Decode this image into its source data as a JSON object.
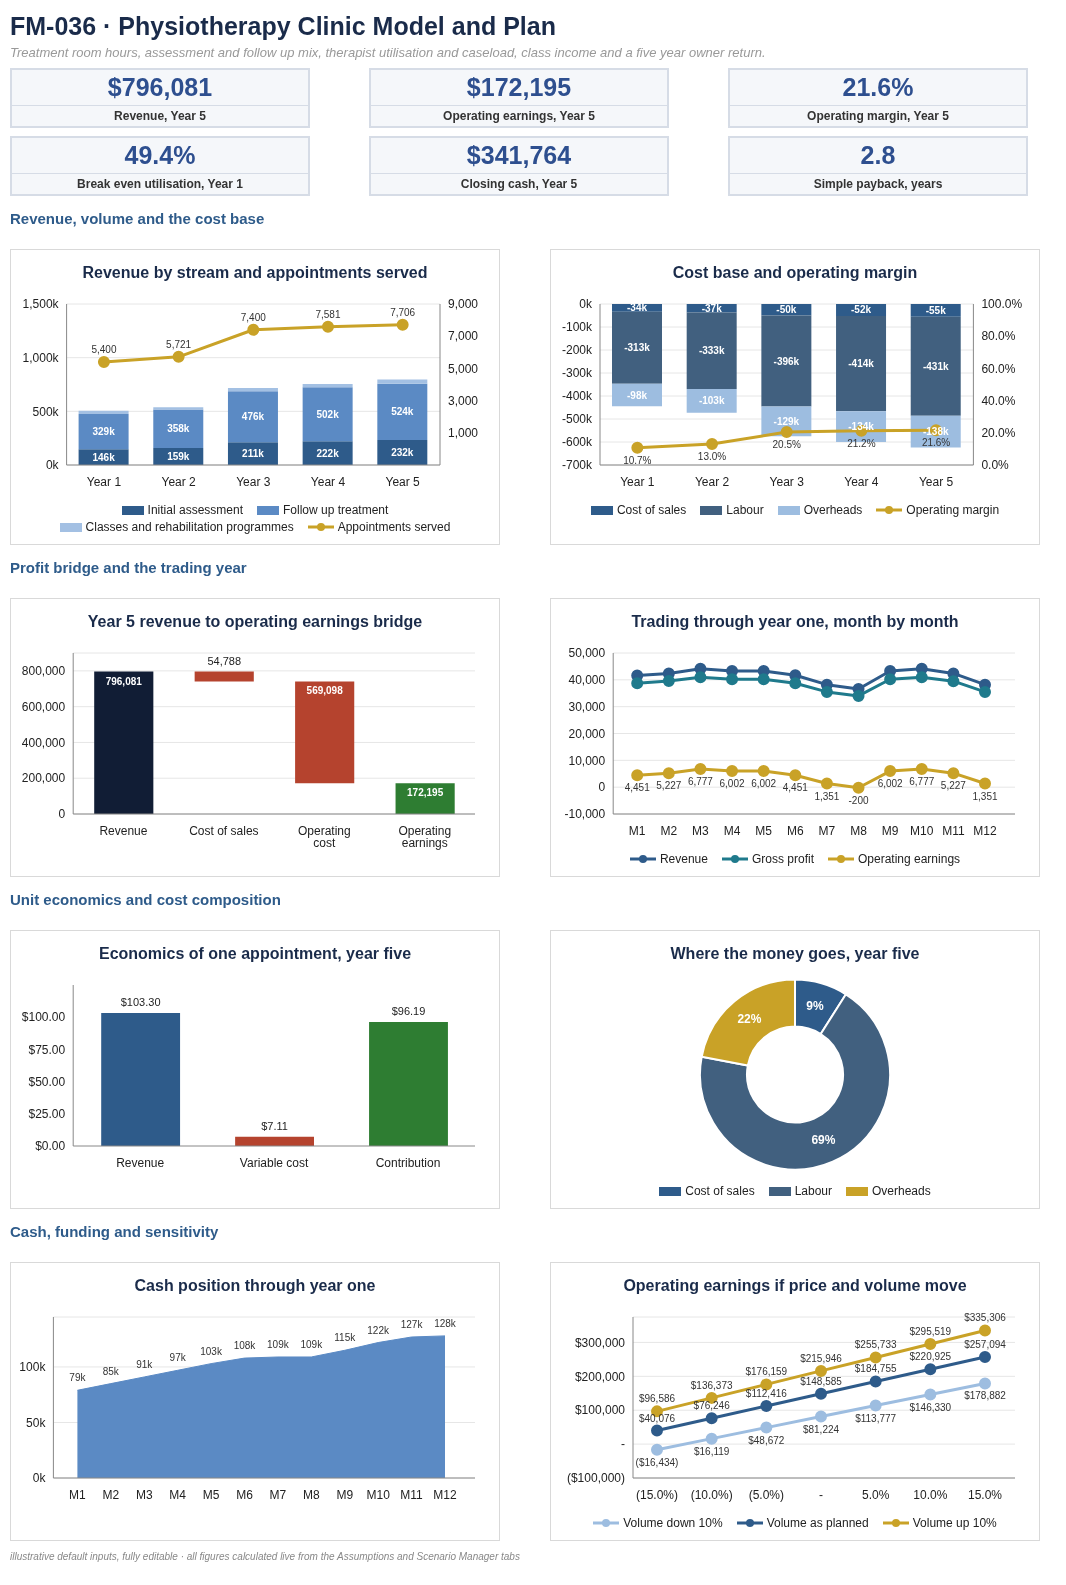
{
  "chart_data": [
    {
      "type": "other",
      "title": "FM-036 · Physiotherapy Clinic Model and Plan",
      "subtitle": "Treatment room hours, assessment and follow up mix, therapist utilisation and caseload, class income and a five year owner return.",
      "annotations": [
        "$796,081",
        "Revenue, Year 5",
        "$172,195",
        "Operating earnings, Year 5",
        "21.6%",
        "Operating margin, Year 5",
        "49.4%",
        "Break even utilisation, Year 1",
        "$341,764",
        "Closing cash, Year 5",
        "2.8",
        "Simple payback, years"
      ]
    },
    {
      "type": "other",
      "title": "Revenue, volume and the cost base"
    },
    {
      "type": "bar",
      "title": "Revenue by stream and appointments served",
      "categories": [
        "Year 1",
        "Year 2",
        "Year 3",
        "Year 4",
        "Year 5"
      ],
      "stacked": true,
      "legend": "bottom",
      "grid": "y",
      "marker": "circle",
      "series": [
        {
          "name": "Initial assessment",
          "color": "#2e5b8a",
          "values": [
            146000,
            159000,
            211000,
            222000,
            232000
          ],
          "value_labels": [
            "146k",
            "159k",
            "211k",
            "222k",
            "232k"
          ]
        },
        {
          "name": "Follow up treatment",
          "color": "#5b8ac4",
          "values": [
            329000,
            358000,
            476000,
            502000,
            524000
          ],
          "value_labels": [
            "329k",
            "358k",
            "476k",
            "502k",
            "524k"
          ]
        },
        {
          "name": "Classes and rehabilitation programmes",
          "color": "#a3c0e3",
          "values": [
            30000,
            20000,
            30000,
            30000,
            40000
          ]
        },
        {
          "name": "Appointments served",
          "type": "line",
          "axis": "y2",
          "color": "#c9a227",
          "values": [
            5400,
            5721,
            7400,
            7581,
            7706
          ],
          "value_labels": [
            "5,400",
            "5,721",
            "7,400",
            "7,581",
            "7,706"
          ]
        }
      ],
      "ylim": [
        0,
        1500000
      ],
      "yticks": [
        {
          "value": 0,
          "label": "0k"
        },
        {
          "value": 500000,
          "label": "500k"
        },
        {
          "value": 1000000,
          "label": "1,000k"
        },
        {
          "value": 1500000,
          "label": "1,500k"
        }
      ],
      "y2lim": [
        -1000,
        9000
      ],
      "y2ticks": [
        {
          "value": 1000,
          "label": "1,000"
        },
        {
          "value": 3000,
          "label": "3,000"
        },
        {
          "value": 5000,
          "label": "5,000"
        },
        {
          "value": 7000,
          "label": "7,000"
        },
        {
          "value": 9000,
          "label": "9,000"
        }
      ]
    },
    {
      "type": "bar",
      "title": "Cost base and operating margin",
      "categories": [
        "Year 1",
        "Year 2",
        "Year 3",
        "Year 4",
        "Year 5"
      ],
      "stacked": true,
      "legend": "bottom",
      "grid": "y",
      "marker": "circle",
      "series": [
        {
          "name": "Cost of sales",
          "color": "#2e5b8a",
          "values": [
            -34000,
            -37000,
            -50000,
            -52000,
            -55000
          ],
          "value_labels": [
            "-34k",
            "-37k",
            "-50k",
            "-52k",
            "-55k"
          ]
        },
        {
          "name": "Labour",
          "color": "#41607f",
          "values": [
            -313000,
            -333000,
            -396000,
            -414000,
            -431000
          ],
          "value_labels": [
            "-313k",
            "-333k",
            "-396k",
            "-414k",
            "-431k"
          ]
        },
        {
          "name": "Overheads",
          "color": "#9dbde0",
          "values": [
            -98000,
            -103000,
            -129000,
            -134000,
            -138000
          ],
          "value_labels": [
            "-98k",
            "-103k",
            "-129k",
            "-134k",
            "-138k"
          ]
        },
        {
          "name": "Operating margin",
          "type": "line",
          "axis": "y2",
          "color": "#c9a227",
          "values": [
            10.7,
            13.0,
            20.5,
            21.2,
            21.6
          ],
          "value_labels": [
            "10.7%",
            "13.0%",
            "20.5%",
            "21.2%",
            "21.6%"
          ]
        }
      ],
      "ylim": [
        -700000,
        0
      ],
      "yticks": [
        {
          "value": -700000,
          "label": "-700k"
        },
        {
          "value": -600000,
          "label": "-600k"
        },
        {
          "value": -500000,
          "label": "-500k"
        },
        {
          "value": -400000,
          "label": "-400k"
        },
        {
          "value": -300000,
          "label": "-300k"
        },
        {
          "value": -200000,
          "label": "-200k"
        },
        {
          "value": -100000,
          "label": "-100k"
        },
        {
          "value": 0,
          "label": "0k"
        }
      ],
      "y2lim": [
        0,
        100
      ],
      "y2ticks": [
        {
          "value": 0,
          "label": "0.0%"
        },
        {
          "value": 20,
          "label": "20.0%"
        },
        {
          "value": 40,
          "label": "40.0%"
        },
        {
          "value": 60,
          "label": "60.0%"
        },
        {
          "value": 80,
          "label": "80.0%"
        },
        {
          "value": 100,
          "label": "100.0%"
        }
      ]
    },
    {
      "type": "other",
      "title": "Profit bridge and the trading year"
    },
    {
      "type": "bar",
      "title": "Year 5 revenue to operating earnings bridge",
      "categories": [
        "Revenue",
        "Cost of sales",
        "Operating cost",
        "Operating earnings"
      ],
      "grid": "y",
      "values": [
        796081,
        54788,
        569098,
        172195
      ],
      "base": [
        0,
        741293,
        172195,
        0
      ],
      "colors": [
        "#111d35",
        "#b5432e",
        "#b5432e",
        "#2e7d32"
      ],
      "value_labels": [
        "796,081",
        "54,788",
        "569,098",
        "172,195"
      ],
      "ylim": [
        0,
        900000
      ],
      "yticks": [
        {
          "value": 0,
          "label": "0"
        },
        {
          "value": 200000,
          "label": "200,000"
        },
        {
          "value": 400000,
          "label": "400,000"
        },
        {
          "value": 600000,
          "label": "600,000"
        },
        {
          "value": 800000,
          "label": "800,000"
        }
      ]
    },
    {
      "type": "line",
      "title": "Trading through year one, month by month",
      "categories": [
        "M1",
        "M2",
        "M3",
        "M4",
        "M5",
        "M6",
        "M7",
        "M8",
        "M9",
        "M10",
        "M11",
        "M12"
      ],
      "legend": "bottom",
      "grid": "y",
      "marker": "circle",
      "series": [
        {
          "name": "Revenue",
          "color": "#2e5b8a",
          "values": [
            41600,
            42400,
            44100,
            43300,
            43300,
            41700,
            38200,
            36600,
            43300,
            44100,
            42400,
            38200
          ]
        },
        {
          "name": "Gross profit",
          "color": "#1f7a8c",
          "values": [
            38700,
            39600,
            41000,
            40200,
            40200,
            38700,
            35500,
            34000,
            40200,
            41000,
            39500,
            35500
          ]
        },
        {
          "name": "Operating earnings",
          "color": "#c9a227",
          "values": [
            4451,
            5227,
            6777,
            6002,
            6002,
            4451,
            1351,
            -200,
            6002,
            6777,
            5227,
            1351
          ],
          "value_labels": [
            "4,451",
            "5,227",
            "6,777",
            "6,002",
            "6,002",
            "4,451",
            "1,351",
            "-200",
            "6,002",
            "6,777",
            "5,227",
            "1,351"
          ]
        }
      ],
      "ylim": [
        -10000,
        50000
      ],
      "yticks": [
        {
          "value": -10000,
          "label": "-10,000"
        },
        {
          "value": 0,
          "label": "0"
        },
        {
          "value": 10000,
          "label": "10,000"
        },
        {
          "value": 20000,
          "label": "20,000"
        },
        {
          "value": 30000,
          "label": "30,000"
        },
        {
          "value": 40000,
          "label": "40,000"
        },
        {
          "value": 50000,
          "label": "50,000"
        }
      ]
    },
    {
      "type": "other",
      "title": "Unit economics and cost composition"
    },
    {
      "type": "bar",
      "title": "Economics of one appointment, year five",
      "categories": [
        "Revenue",
        "Variable cost",
        "Contribution"
      ],
      "values": [
        103.3,
        7.11,
        96.19
      ],
      "colors": [
        "#2e5b8a",
        "#b5432e",
        "#2e7d32"
      ],
      "value_labels": [
        "$103.30",
        "$7.11",
        "$96.19"
      ],
      "ylim": [
        0,
        125
      ],
      "yticks": [
        {
          "value": 0,
          "label": "$0.00"
        },
        {
          "value": 25,
          "label": "$25.00"
        },
        {
          "value": 50,
          "label": "$50.00"
        },
        {
          "value": 75,
          "label": "$75.00"
        },
        {
          "value": 100,
          "label": "$100.00"
        }
      ]
    },
    {
      "type": "donut",
      "title": "Where the money goes, year five",
      "categories": [
        "Cost of sales",
        "Labour",
        "Overheads"
      ],
      "values": [
        9,
        69,
        22
      ],
      "colors": [
        "#2e5b8a",
        "#41607f",
        "#c9a227"
      ],
      "value_labels": [
        "9%",
        "69%",
        "22%"
      ],
      "legend": "bottom"
    },
    {
      "type": "other",
      "title": "Cash, funding and sensitivity"
    },
    {
      "type": "area",
      "title": "Cash position through year one",
      "categories": [
        "M1",
        "M2",
        "M3",
        "M4",
        "M5",
        "M6",
        "M7",
        "M8",
        "M9",
        "M10",
        "M11",
        "M12"
      ],
      "grid": "y",
      "values": [
        79000,
        85000,
        91000,
        97000,
        103000,
        108000,
        109000,
        109000,
        115000,
        122000,
        127000,
        128000
      ],
      "color": "#5b8ac4",
      "value_labels": [
        "79k",
        "85k",
        "91k",
        "97k",
        "103k",
        "108k",
        "109k",
        "109k",
        "115k",
        "122k",
        "127k",
        "128k"
      ],
      "ylim": [
        0,
        145000
      ],
      "yticks": [
        {
          "value": 0,
          "label": "0k"
        },
        {
          "value": 50000,
          "label": "50k"
        },
        {
          "value": 100000,
          "label": "100k"
        }
      ]
    },
    {
      "type": "line",
      "title": "Operating earnings if price and volume move",
      "categories": [
        "(15.0%)",
        "(10.0%)",
        "(5.0%)",
        "-",
        "5.0%",
        "10.0%",
        "15.0%"
      ],
      "legend": "bottom",
      "grid": "y",
      "marker": "circle",
      "series": [
        {
          "name": "Volume down 10%",
          "color": "#9dbde0",
          "values": [
            -16434,
            16119,
            48672,
            81224,
            113777,
            146330,
            178882
          ],
          "value_labels": [
            "($16,434)",
            "$16,119",
            "$48,672",
            "$81,224",
            "$113,777",
            "$146,330",
            "$178,882"
          ]
        },
        {
          "name": "Volume as planned",
          "color": "#2e5b8a",
          "values": [
            40076,
            76246,
            112416,
            148585,
            184755,
            220925,
            257094
          ],
          "value_labels": [
            "$40,076",
            "$76,246",
            "$112,416",
            "$148,585",
            "$184,755",
            "$220,925",
            "$257,094"
          ]
        },
        {
          "name": "Volume up 10%",
          "color": "#c9a227",
          "values": [
            96586,
            136373,
            176159,
            215946,
            255733,
            295519,
            335306
          ],
          "value_labels": [
            "$96,586",
            "$136,373",
            "$176,159",
            "$215,946",
            "$255,733",
            "$295,519",
            "$335,306"
          ]
        }
      ],
      "ylim": [
        -100000,
        375000
      ],
      "yticks": [
        {
          "value": -100000,
          "label": "($100,000)"
        },
        {
          "value": 0,
          "label": "-"
        },
        {
          "value": 100000,
          "label": "$100,000"
        },
        {
          "value": 200000,
          "label": "$200,000"
        },
        {
          "value": 300000,
          "label": "$300,000"
        }
      ]
    },
    {
      "type": "other",
      "annotations": [
        "illustrative default inputs, fully editable · all figures calculated live from the Assumptions and Scenario Manager tabs"
      ]
    }
  ]
}
